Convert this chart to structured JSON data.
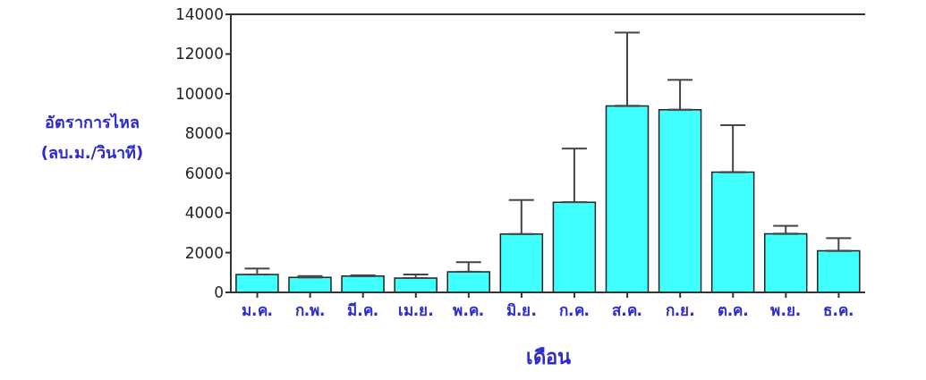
{
  "chart_data": {
    "type": "bar",
    "xlabel": "เดือน",
    "ylabel": "อัตราการไหล\n(ลบ.ม./วินาที)",
    "categories": [
      "ม.ค.",
      "ก.พ.",
      "มี.ค.",
      "เม.ย.",
      "พ.ค.",
      "มิ.ย.",
      "ก.ค.",
      "ส.ค.",
      "ก.ย.",
      "ต.ค.",
      "พ.ย.",
      "ธ.ค."
    ],
    "values": [
      900,
      750,
      820,
      720,
      1040,
      2940,
      4540,
      9390,
      9200,
      6050,
      2950,
      2090
    ],
    "errors": [
      [
        900,
        1200
      ],
      [
        750,
        820
      ],
      [
        820,
        860
      ],
      [
        720,
        900
      ],
      [
        1040,
        1520
      ],
      [
        2940,
        4650
      ],
      [
        4540,
        7240
      ],
      [
        9390,
        13080
      ],
      [
        9200,
        10700
      ],
      [
        6050,
        8420
      ],
      [
        2950,
        3350
      ],
      [
        2090,
        2730
      ]
    ],
    "color": "#40ffff",
    "ylim": [
      0,
      14000
    ],
    "yticks": [
      0,
      2000,
      4000,
      6000,
      8000,
      10000,
      12000,
      14000
    ],
    "grid": false,
    "legend": false
  }
}
